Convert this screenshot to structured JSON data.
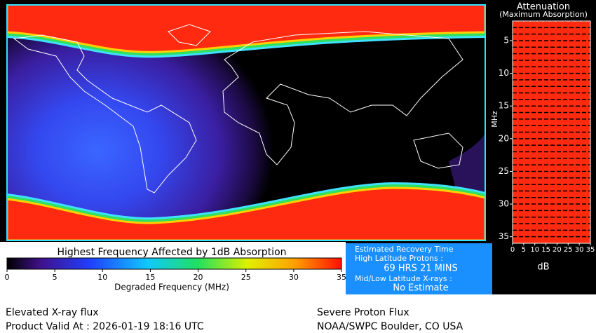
{
  "colorbar": {
    "title": "Highest Frequency Affected by 1dB Absorption",
    "lim": [
      0,
      35
    ],
    "ticks": [
      0,
      5,
      10,
      15,
      20,
      25,
      30,
      35
    ],
    "label": "Degraded Frequency (MHz)"
  },
  "attenuation": {
    "title": "Attenuation",
    "subtitle": "(Maximum Absorption)",
    "ylim": [
      2,
      36
    ],
    "yticks": [
      5,
      10,
      15,
      20,
      25,
      30,
      35
    ],
    "y_label": "MHz",
    "xlim": [
      0,
      35
    ],
    "xticks": [
      0,
      5,
      10,
      15,
      20,
      25,
      30,
      35
    ],
    "x_label": "dB",
    "color": "#ff2a10",
    "frequencies": [
      2,
      3,
      4,
      5,
      6,
      7,
      8,
      9,
      10,
      11,
      12,
      13,
      14,
      15,
      16,
      17,
      18,
      19,
      20,
      21,
      22,
      23,
      24,
      25,
      26,
      27,
      28,
      29,
      30,
      31,
      32,
      33,
      34,
      35
    ],
    "values": [
      35,
      35,
      35,
      35,
      35,
      35,
      35,
      35,
      35,
      35,
      35,
      35,
      35,
      35,
      35,
      35,
      35,
      35,
      35,
      35,
      35,
      35,
      35,
      35,
      35,
      35,
      35,
      35,
      35,
      35,
      35,
      35,
      35,
      35
    ]
  },
  "recovery": {
    "title": "Estimated Recovery Time",
    "high_lat_label": "High Latitude Protons :",
    "high_lat_value": "69 HRS 21 MINS",
    "mid_low_label": "Mid/Low Latitude X-rays :",
    "mid_low_value": "No Estimate"
  },
  "footer": {
    "left_1": "Elevated X-ray flux",
    "left_2": "Product Valid At : 2026-01-19 18:16 UTC",
    "right_1": "Severe Proton Flux",
    "right_2": "NOAA/SWPC Boulder, CO USA"
  }
}
